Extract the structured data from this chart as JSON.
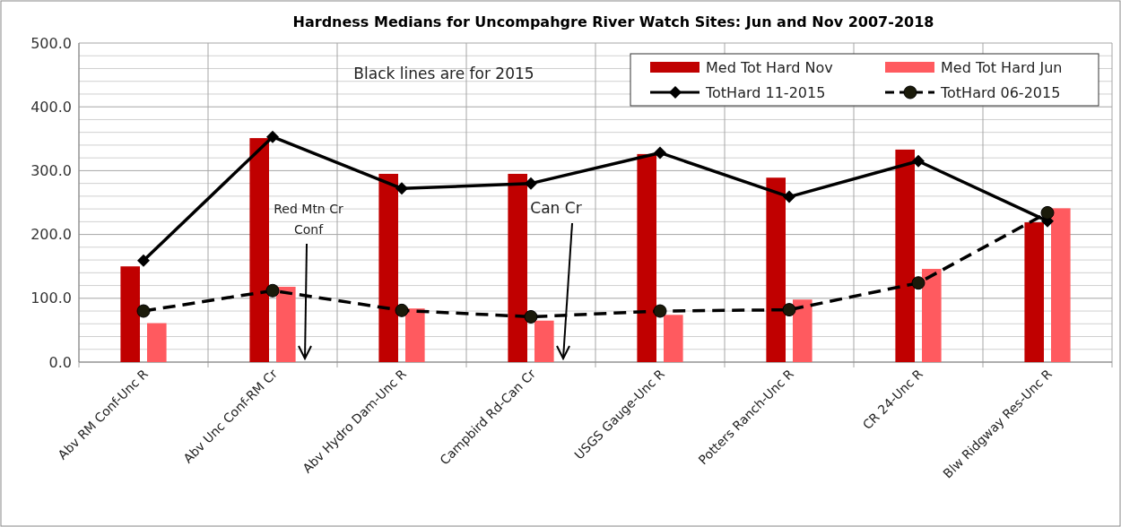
{
  "chart_data": {
    "type": "bar",
    "title": "Hardness Medians for Uncompahgre River Watch Sites: Jun and Nov 2007-2018",
    "categories": [
      "Abv RM Conf-Unc R",
      "Abv Unc Conf-RM Cr",
      "Abv Hydro Dam-Unc R",
      "Campbird Rd-Can Cr",
      "USGS Gauge-Unc R",
      "Potters Ranch-Unc R",
      "CR 24-Unc R",
      "Blw Ridgway Res-Unc R"
    ],
    "series": [
      {
        "name": "Med Tot Hard Nov",
        "color": "#c00000",
        "values": [
          150,
          351,
          295,
          295,
          326,
          289,
          333,
          219
        ]
      },
      {
        "name": "Med Tot Hard Jun",
        "color": "#ff5a5f",
        "values": [
          61,
          118,
          84,
          65,
          74,
          98,
          146,
          241
        ]
      },
      {
        "name": "TotHard 11-2015",
        "type": "line",
        "color": "#000000",
        "marker": "diamond",
        "line_style": "solid",
        "values": [
          159,
          353,
          272,
          280,
          328,
          259,
          315,
          221
        ]
      },
      {
        "name": "TotHard 06-2015",
        "type": "line",
        "color": "#000000",
        "marker": "circle",
        "line_style": "dashed",
        "values": [
          80,
          112,
          81,
          71,
          80,
          82,
          124,
          234
        ]
      }
    ],
    "ylim": [
      0,
      500
    ],
    "yticks": [
      {
        "value": 0,
        "label": "0.0"
      },
      {
        "value": 20,
        "label": null
      },
      {
        "value": 40,
        "label": null
      },
      {
        "value": 60,
        "label": null
      },
      {
        "value": 80,
        "label": null
      },
      {
        "value": 100,
        "label": "100.0"
      },
      {
        "value": 120,
        "label": null
      },
      {
        "value": 140,
        "label": null
      },
      {
        "value": 160,
        "label": null
      },
      {
        "value": 180,
        "label": null
      },
      {
        "value": 200,
        "label": "200.0"
      },
      {
        "value": 220,
        "label": null
      },
      {
        "value": 240,
        "label": null
      },
      {
        "value": 260,
        "label": null
      },
      {
        "value": 280,
        "label": null
      },
      {
        "value": 300,
        "label": "300.0"
      },
      {
        "value": 320,
        "label": null
      },
      {
        "value": 340,
        "label": null
      },
      {
        "value": 360,
        "label": null
      },
      {
        "value": 380,
        "label": null
      },
      {
        "value": 400,
        "label": "400.0"
      },
      {
        "value": 420,
        "label": null
      },
      {
        "value": 440,
        "label": null
      },
      {
        "value": 460,
        "label": null
      },
      {
        "value": 480,
        "label": null
      },
      {
        "value": 500,
        "label": "500.0"
      }
    ],
    "grid": true,
    "legend": "top right",
    "annotations": [
      "Black lines are for 2015",
      "Red Mtn Cr Conf",
      "Can Cr"
    ]
  }
}
